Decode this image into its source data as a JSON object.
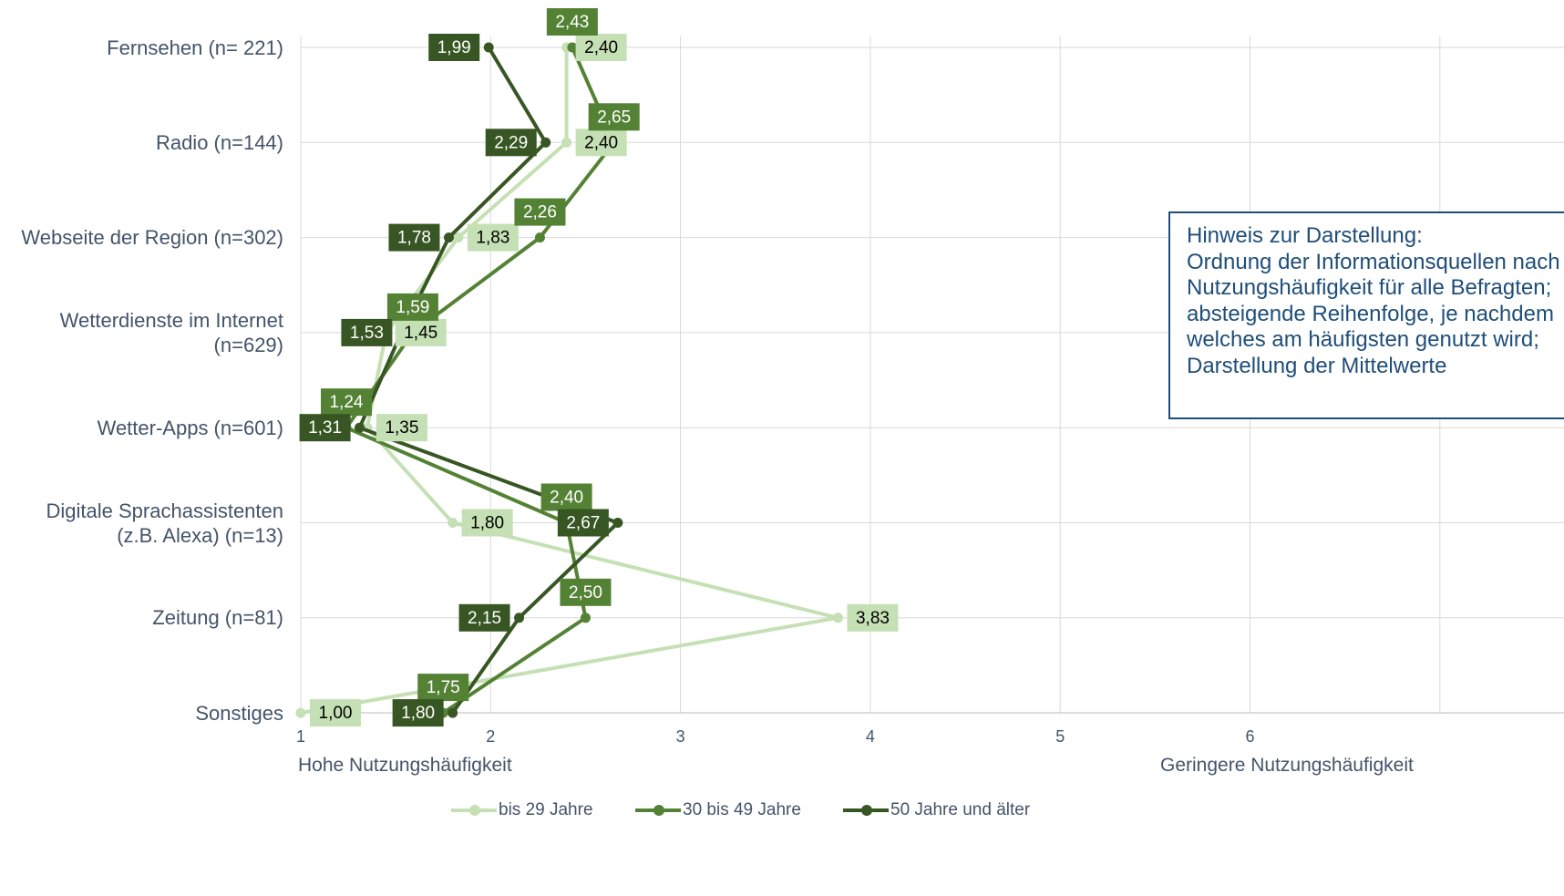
{
  "chart_data": {
    "type": "line",
    "orientation": "horizontal",
    "categories": [
      "Fernsehen (n= 221)",
      "Radio (n=144)",
      "Webseite der Region (n=302)",
      "Wetterdienste im Internet\n(n=629)",
      "Wetter-Apps (n=601)",
      "Digitale Sprachassistenten\n(z.B. Alexa) (n=13)",
      "Zeitung (n=81)",
      "Sonstiges"
    ],
    "series": [
      {
        "name": "bis 29 Jahre",
        "color": "#c5e0b4",
        "values": [
          2.4,
          2.4,
          1.83,
          1.45,
          1.35,
          1.8,
          3.83,
          1.0
        ],
        "labels": [
          "2,40",
          "2,40",
          "1,83",
          "1,45",
          "1,35",
          "1,80",
          "3,83",
          "1,00"
        ]
      },
      {
        "name": "30 bis 49 Jahre",
        "color": "#548235",
        "values": [
          2.43,
          2.65,
          2.26,
          1.59,
          1.24,
          2.4,
          2.5,
          1.75
        ],
        "labels": [
          "2,43",
          "2,65",
          "2,26",
          "1,59",
          "1,24",
          "2,40",
          "2,50",
          "1,75"
        ]
      },
      {
        "name": "50 Jahre und älter",
        "color": "#375623",
        "values": [
          1.99,
          2.29,
          1.78,
          1.53,
          1.31,
          2.67,
          2.15,
          1.8
        ],
        "labels": [
          "1,99",
          "2,29",
          "1,78",
          "1,53",
          "1,31",
          "2,67",
          "2,15",
          "1,80"
        ]
      }
    ],
    "x_ticks": [
      "1",
      "2",
      "3",
      "4",
      "5",
      "6"
    ],
    "xlim": [
      1,
      7
    ],
    "x_title_left": "Hohe Nutzungshäufigkeit",
    "x_title_right": "Geringere Nutzungshäufigkeit",
    "grid": true,
    "legend_position": "bottom"
  },
  "note": {
    "lines": [
      "Hinweis zur Darstellung:",
      "Ordnung der Informationsquellen nach",
      "Nutzungshäufigkeit für alle Befragten;",
      "absteigende Reihenfolge, je nachdem",
      "welches am häufigsten genutzt wird;",
      "Darstellung der Mittelwerte"
    ]
  }
}
